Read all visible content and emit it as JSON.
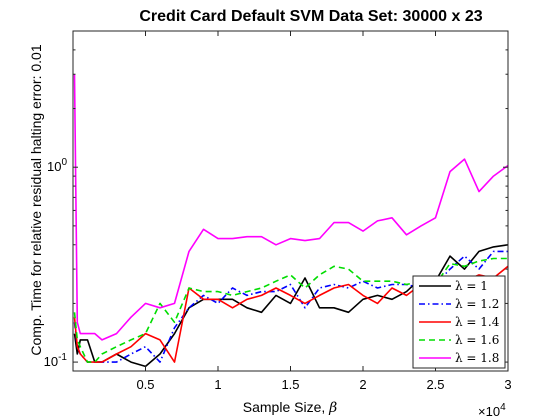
{
  "chart_data": {
    "type": "line",
    "title": "Credit Card Default SVM Data Set: 30000 x 23",
    "xlabel_text": "Sample Size, ",
    "xlabel_symbol": "β",
    "ylabel": "Comp. Time for relative residual halting error: 0.01",
    "x_multiplier_base": "×10",
    "x_multiplier_exp": "4",
    "xlim": [
      0,
      30000
    ],
    "ylim": [
      0.09,
      5
    ],
    "yscale": "log",
    "xtick_values": [
      5000,
      10000,
      15000,
      20000,
      25000,
      30000
    ],
    "xtick_labels": [
      "0.5",
      "1",
      "1.5",
      "2",
      "2.5",
      "3"
    ],
    "ytick_values": [
      0.1,
      1
    ],
    "ytick_base": "10",
    "ytick_exps": [
      "-1",
      "0"
    ],
    "legend_location": "bottom-right",
    "series": [
      {
        "name": "λ = 1",
        "color": "#000000",
        "dash": "solid",
        "x": [
          100,
          300,
          500,
          1000,
          1500,
          2000,
          3000,
          4000,
          5000,
          6000,
          7000,
          8000,
          9000,
          10000,
          11000,
          12000,
          13000,
          14000,
          15000,
          16000,
          17000,
          18000,
          19000,
          20000,
          21000,
          22000,
          23000,
          24000,
          25000,
          26000,
          27000,
          28000,
          29000,
          30000
        ],
        "y": [
          0.14,
          0.11,
          0.13,
          0.13,
          0.1,
          0.1,
          0.11,
          0.1,
          0.095,
          0.11,
          0.14,
          0.19,
          0.21,
          0.21,
          0.21,
          0.19,
          0.18,
          0.22,
          0.2,
          0.27,
          0.19,
          0.19,
          0.18,
          0.21,
          0.22,
          0.21,
          0.23,
          0.27,
          0.26,
          0.35,
          0.3,
          0.37,
          0.39,
          0.4
        ]
      },
      {
        "name": "λ = 1.2",
        "color": "#0000ff",
        "dash": "dashdot",
        "x": [
          100,
          300,
          500,
          1000,
          1500,
          2000,
          3000,
          4000,
          5000,
          6000,
          7000,
          8000,
          9000,
          10000,
          11000,
          12000,
          13000,
          14000,
          15000,
          16000,
          17000,
          18000,
          19000,
          20000,
          21000,
          22000,
          23000,
          24000,
          25000,
          26000,
          27000,
          28000,
          29000,
          30000
        ],
        "y": [
          0.16,
          0.12,
          0.11,
          0.1,
          0.1,
          0.1,
          0.1,
          0.11,
          0.12,
          0.1,
          0.15,
          0.19,
          0.22,
          0.2,
          0.24,
          0.22,
          0.23,
          0.23,
          0.25,
          0.19,
          0.24,
          0.25,
          0.24,
          0.26,
          0.24,
          0.25,
          0.25,
          0.24,
          0.25,
          0.3,
          0.35,
          0.3,
          0.37,
          0.37
        ]
      },
      {
        "name": "λ = 1.4",
        "color": "#ff0000",
        "dash": "solid",
        "x": [
          100,
          300,
          500,
          1000,
          1500,
          2000,
          3000,
          4000,
          5000,
          6000,
          7000,
          8000,
          9000,
          10000,
          11000,
          12000,
          13000,
          14000,
          15000,
          16000,
          17000,
          18000,
          19000,
          20000,
          21000,
          22000,
          23000,
          24000,
          25000,
          26000,
          27000,
          28000,
          29000,
          30000
        ],
        "y": [
          0.17,
          0.12,
          0.11,
          0.1,
          0.1,
          0.1,
          0.11,
          0.12,
          0.14,
          0.13,
          0.1,
          0.24,
          0.21,
          0.21,
          0.19,
          0.21,
          0.22,
          0.24,
          0.22,
          0.2,
          0.22,
          0.24,
          0.25,
          0.22,
          0.2,
          0.24,
          0.22,
          0.25,
          0.25,
          0.27,
          0.26,
          0.28,
          0.27,
          0.31
        ]
      },
      {
        "name": "λ = 1.6",
        "color": "#00dd00",
        "dash": "dashed",
        "x": [
          100,
          300,
          500,
          1000,
          1500,
          2000,
          3000,
          4000,
          5000,
          6000,
          7000,
          8000,
          9000,
          10000,
          11000,
          12000,
          13000,
          14000,
          15000,
          16000,
          17000,
          18000,
          19000,
          20000,
          21000,
          22000,
          23000,
          24000,
          25000,
          26000,
          27000,
          28000,
          29000,
          30000
        ],
        "y": [
          0.18,
          0.13,
          0.12,
          0.1,
          0.1,
          0.11,
          0.12,
          0.13,
          0.14,
          0.2,
          0.16,
          0.24,
          0.23,
          0.23,
          0.22,
          0.23,
          0.24,
          0.26,
          0.28,
          0.24,
          0.28,
          0.31,
          0.3,
          0.26,
          0.26,
          0.26,
          0.25,
          0.26,
          0.25,
          0.32,
          0.31,
          0.33,
          0.34,
          0.34
        ]
      },
      {
        "name": "λ = 1.8",
        "color": "#ff00ff",
        "dash": "solid",
        "x": [
          100,
          300,
          500,
          1000,
          1500,
          2000,
          3000,
          4000,
          5000,
          6000,
          7000,
          8000,
          9000,
          10000,
          11000,
          12000,
          13000,
          14000,
          15000,
          16000,
          17000,
          18000,
          19000,
          20000,
          21000,
          22000,
          23000,
          24000,
          25000,
          26000,
          27000,
          28000,
          29000,
          30000
        ],
        "y": [
          3.0,
          0.16,
          0.14,
          0.14,
          0.14,
          0.13,
          0.14,
          0.17,
          0.2,
          0.19,
          0.2,
          0.37,
          0.48,
          0.43,
          0.43,
          0.44,
          0.44,
          0.4,
          0.43,
          0.42,
          0.43,
          0.52,
          0.52,
          0.47,
          0.53,
          0.55,
          0.45,
          0.5,
          0.55,
          0.95,
          1.1,
          0.75,
          0.9,
          1.02
        ]
      }
    ]
  }
}
